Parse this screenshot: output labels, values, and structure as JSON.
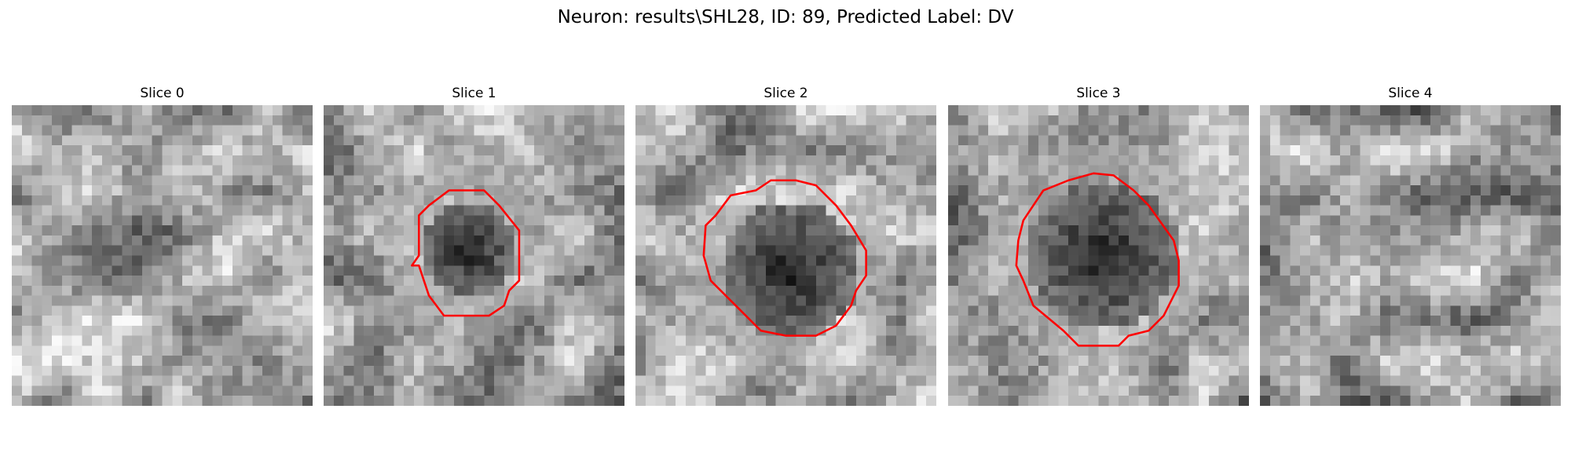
{
  "figure": {
    "title": "Neuron: results\\SHL28, ID: 89, Predicted Label: DV"
  },
  "panels": [
    {
      "title": "Slice 0",
      "has_contour": false,
      "contour_color": "#ff0000",
      "image": {
        "dark_spot": null,
        "seed": 11
      }
    },
    {
      "title": "Slice 1",
      "has_contour": true,
      "contour_color": "#ff0000",
      "image": {
        "dark_spot": "small",
        "seed": 23
      }
    },
    {
      "title": "Slice 2",
      "has_contour": true,
      "contour_color": "#ff0000",
      "image": {
        "dark_spot": "medium",
        "seed": 37
      }
    },
    {
      "title": "Slice 3",
      "has_contour": true,
      "contour_color": "#ff0000",
      "image": {
        "dark_spot": "large",
        "seed": 53
      }
    },
    {
      "title": "Slice 4",
      "has_contour": false,
      "contour_color": "#ff0000",
      "image": {
        "dark_spot": null,
        "seed": 71
      }
    }
  ]
}
